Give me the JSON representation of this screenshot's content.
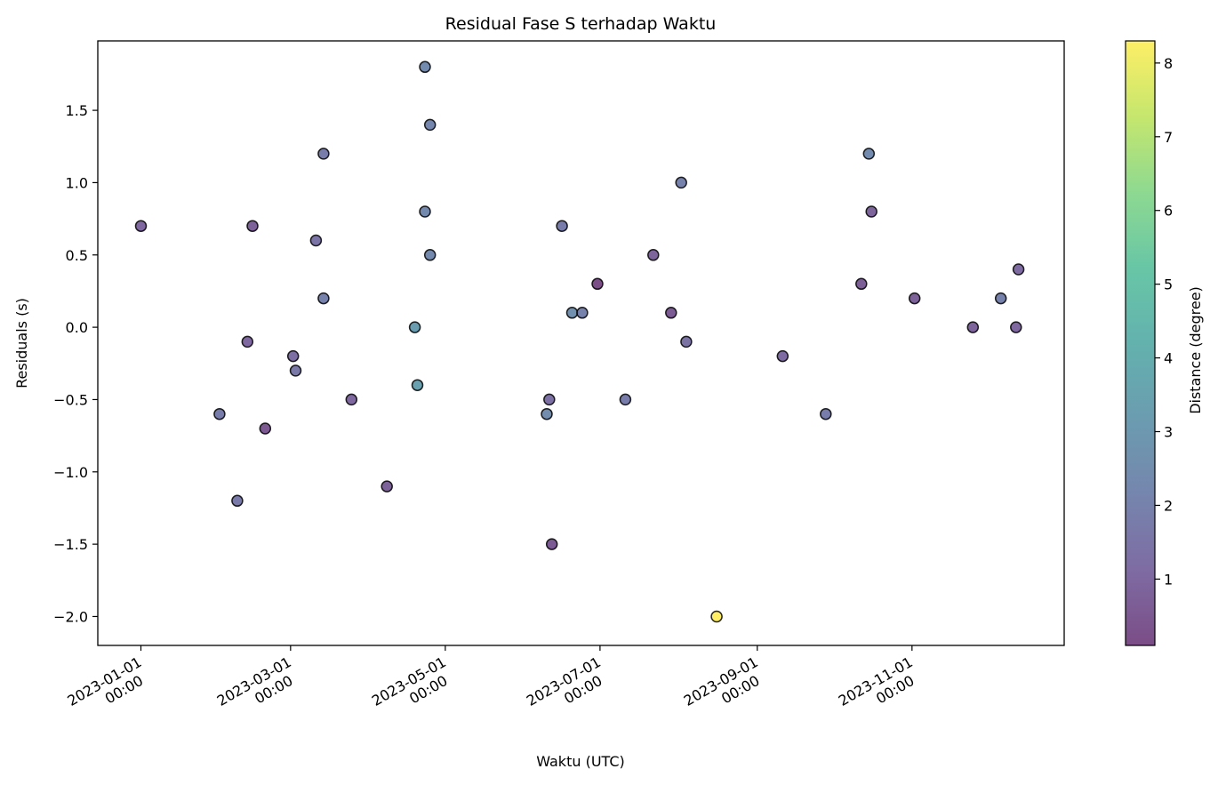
{
  "chart_data": {
    "type": "scatter",
    "title": "Residual Fase S terhadap Waktu",
    "xlabel": "Waktu (UTC)",
    "ylabel": "Residuals (s)",
    "colorbar_label": "Distance (degree)",
    "colormap": "viridis",
    "marker_alpha": 0.7,
    "marker_edge": "#000000",
    "xlim": [
      "2022-12-15",
      "2023-12-31"
    ],
    "ylim": [
      -2.2,
      1.98
    ],
    "clim": [
      0.1,
      8.3
    ],
    "x_ticks": [
      {
        "date": "2023-01-01",
        "line1": "2023-01-01",
        "line2": "00:00"
      },
      {
        "date": "2023-03-01",
        "line1": "2023-03-01",
        "line2": "00:00"
      },
      {
        "date": "2023-05-01",
        "line1": "2023-05-01",
        "line2": "00:00"
      },
      {
        "date": "2023-07-01",
        "line1": "2023-07-01",
        "line2": "00:00"
      },
      {
        "date": "2023-09-01",
        "line1": "2023-09-01",
        "line2": "00:00"
      },
      {
        "date": "2023-11-01",
        "line1": "2023-11-01",
        "line2": "00:00"
      }
    ],
    "y_ticks": [
      {
        "value": 1.5,
        "label": "1.5"
      },
      {
        "value": 1.0,
        "label": "1.0"
      },
      {
        "value": 0.5,
        "label": "0.5"
      },
      {
        "value": 0.0,
        "label": "0.0"
      },
      {
        "value": -0.5,
        "label": "−0.5"
      },
      {
        "value": -1.0,
        "label": "−1.0"
      },
      {
        "value": -1.5,
        "label": "−1.5"
      },
      {
        "value": -2.0,
        "label": "−2.0"
      }
    ],
    "colorbar_ticks": [
      {
        "value": 1,
        "label": "1"
      },
      {
        "value": 2,
        "label": "2"
      },
      {
        "value": 3,
        "label": "3"
      },
      {
        "value": 4,
        "label": "4"
      },
      {
        "value": 5,
        "label": "5"
      },
      {
        "value": 6,
        "label": "6"
      },
      {
        "value": 7,
        "label": "7"
      },
      {
        "value": 8,
        "label": "8"
      }
    ],
    "points": [
      {
        "date": "2023-01-01",
        "residual": 0.7,
        "distance": 1.0
      },
      {
        "date": "2023-02-01",
        "residual": -0.6,
        "distance": 1.8
      },
      {
        "date": "2023-02-08",
        "residual": -1.2,
        "distance": 1.7
      },
      {
        "date": "2023-02-12",
        "residual": -0.1,
        "distance": 1.0
      },
      {
        "date": "2023-02-14",
        "residual": 0.7,
        "distance": 0.8
      },
      {
        "date": "2023-02-19",
        "residual": -0.7,
        "distance": 0.5
      },
      {
        "date": "2023-03-02",
        "residual": -0.2,
        "distance": 1.2
      },
      {
        "date": "2023-03-03",
        "residual": -0.3,
        "distance": 1.6
      },
      {
        "date": "2023-03-11",
        "residual": 0.6,
        "distance": 1.5
      },
      {
        "date": "2023-03-14",
        "residual": 1.2,
        "distance": 1.8
      },
      {
        "date": "2023-03-14",
        "residual": 0.2,
        "distance": 2.0
      },
      {
        "date": "2023-03-25",
        "residual": -0.5,
        "distance": 1.0
      },
      {
        "date": "2023-04-08",
        "residual": -1.1,
        "distance": 0.8
      },
      {
        "date": "2023-04-19",
        "residual": 0.0,
        "distance": 3.2
      },
      {
        "date": "2023-04-20",
        "residual": -0.4,
        "distance": 3.4
      },
      {
        "date": "2023-04-23",
        "residual": 1.8,
        "distance": 2.4
      },
      {
        "date": "2023-04-23",
        "residual": 0.8,
        "distance": 2.3
      },
      {
        "date": "2023-04-25",
        "residual": 1.4,
        "distance": 2.2
      },
      {
        "date": "2023-04-25",
        "residual": 0.5,
        "distance": 2.3
      },
      {
        "date": "2023-06-10",
        "residual": -0.6,
        "distance": 2.5
      },
      {
        "date": "2023-06-11",
        "residual": -0.5,
        "distance": 1.3
      },
      {
        "date": "2023-06-12",
        "residual": -1.5,
        "distance": 0.6
      },
      {
        "date": "2023-06-16",
        "residual": 0.7,
        "distance": 1.8
      },
      {
        "date": "2023-06-20",
        "residual": 0.1,
        "distance": 2.6
      },
      {
        "date": "2023-06-24",
        "residual": 0.1,
        "distance": 2.0
      },
      {
        "date": "2023-06-30",
        "residual": 0.3,
        "distance": 0.15
      },
      {
        "date": "2023-07-11",
        "residual": -0.5,
        "distance": 1.8
      },
      {
        "date": "2023-07-22",
        "residual": 0.5,
        "distance": 0.9
      },
      {
        "date": "2023-07-29",
        "residual": 0.1,
        "distance": 0.6
      },
      {
        "date": "2023-08-02",
        "residual": 1.0,
        "distance": 2.0
      },
      {
        "date": "2023-08-04",
        "residual": -0.1,
        "distance": 1.4
      },
      {
        "date": "2023-08-16",
        "residual": -2.0,
        "distance": 8.3
      },
      {
        "date": "2023-09-11",
        "residual": -0.2,
        "distance": 1.1
      },
      {
        "date": "2023-09-28",
        "residual": -0.6,
        "distance": 1.8
      },
      {
        "date": "2023-10-12",
        "residual": 0.3,
        "distance": 0.7
      },
      {
        "date": "2023-10-15",
        "residual": 1.2,
        "distance": 2.4
      },
      {
        "date": "2023-10-16",
        "residual": 0.8,
        "distance": 0.9
      },
      {
        "date": "2023-11-02",
        "residual": 0.2,
        "distance": 0.8
      },
      {
        "date": "2023-11-25",
        "residual": 0.0,
        "distance": 0.9
      },
      {
        "date": "2023-12-06",
        "residual": 0.2,
        "distance": 2.0
      },
      {
        "date": "2023-12-12",
        "residual": 0.0,
        "distance": 1.0
      },
      {
        "date": "2023-12-13",
        "residual": 0.4,
        "distance": 1.1
      }
    ]
  }
}
